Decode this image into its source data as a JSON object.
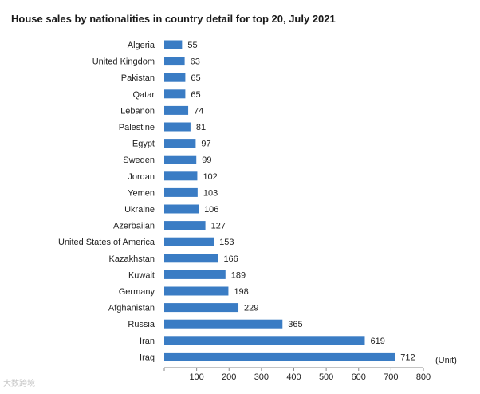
{
  "chart_data": {
    "type": "bar",
    "orientation": "horizontal",
    "title": "House sales by nationalities in country detail for top 20, July 2021",
    "unit_label": "(Unit)",
    "categories": [
      "Algeria",
      "United Kingdom",
      "Pakistan",
      "Qatar",
      "Lebanon",
      "Palestine",
      "Egypt",
      "Sweden",
      "Jordan",
      "Yemen",
      "Ukraine",
      "Azerbaijan",
      "United States of America",
      "Kazakhstan",
      "Kuwait",
      "Germany",
      "Afghanistan",
      "Russia",
      "Iran",
      "Iraq"
    ],
    "values": [
      55,
      63,
      65,
      65,
      74,
      81,
      97,
      99,
      102,
      103,
      106,
      127,
      153,
      166,
      189,
      198,
      229,
      365,
      619,
      712
    ],
    "xlim": [
      0,
      800
    ],
    "xticks": [
      100,
      200,
      300,
      400,
      500,
      600,
      700,
      800
    ],
    "grid": false,
    "bar_color": "#3a7cc4"
  },
  "watermark": "大数跨境"
}
